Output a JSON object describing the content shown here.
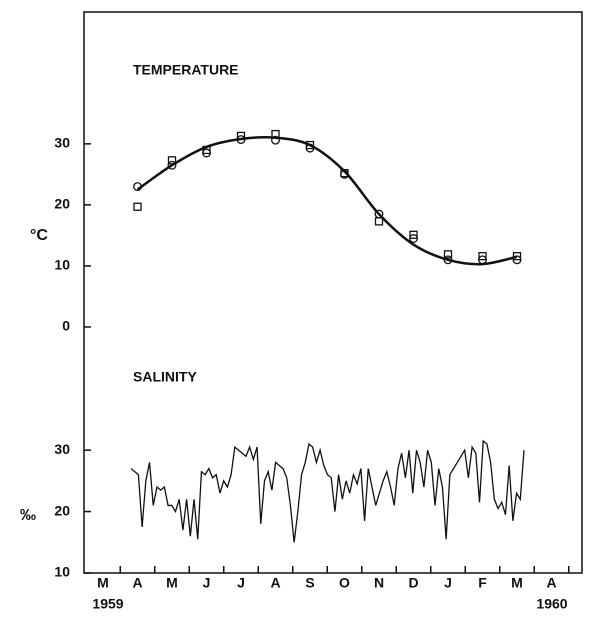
{
  "chart_data": [
    {
      "type": "scatter",
      "title": "TEMPERATURE",
      "y_label": "°C",
      "categories": [
        "M",
        "A",
        "M",
        "J",
        "J",
        "A",
        "S",
        "O",
        "N",
        "D",
        "J",
        "F",
        "M",
        "A"
      ],
      "year_labels": [
        "1959",
        "1960"
      ],
      "ylim": [
        -5,
        51.6
      ],
      "yticks": [
        0,
        10,
        20,
        30
      ],
      "series": [
        {
          "marker": "circle",
          "color": "#111111",
          "values": [
            null,
            23,
            26.5,
            28.5,
            30.7,
            30.6,
            29.3,
            25,
            18.5,
            14.5,
            11,
            11,
            11,
            null
          ]
        },
        {
          "marker": "square",
          "color": "#111111",
          "values": [
            null,
            19.7,
            27.3,
            29,
            31.3,
            31.6,
            29.8,
            25.2,
            17.3,
            15.1,
            11.9,
            11.6,
            11.6,
            null
          ]
        },
        {
          "marker": "line",
          "color": "#111111",
          "values": [
            null,
            22.5,
            26.5,
            29.5,
            30.8,
            31,
            29.8,
            25.5,
            18.5,
            13.5,
            11,
            10.3,
            11.5,
            null
          ]
        }
      ]
    },
    {
      "type": "line",
      "title": "SALINITY",
      "y_label": "‰",
      "color": "#111111",
      "ylim": [
        10,
        38
      ],
      "yticks": [
        10,
        20,
        30
      ],
      "values": [
        27,
        26.5,
        26,
        17.5,
        25,
        28,
        21,
        24,
        23.5,
        24,
        21,
        21,
        20,
        22,
        17,
        22,
        16,
        22,
        15.5,
        26.5,
        26,
        27,
        25.5,
        26,
        23,
        25,
        24,
        26,
        30.5,
        30,
        29.5,
        29,
        30.5,
        28.5,
        30.5,
        18,
        25,
        26.5,
        23.5,
        28,
        27.5,
        27,
        25.5,
        21,
        15,
        20,
        26,
        28,
        31,
        30.5,
        28,
        30,
        27.5,
        26,
        25.5,
        20,
        26,
        22,
        25,
        23,
        26,
        24.5,
        27,
        18.5,
        27,
        24,
        21,
        23,
        25,
        26.5,
        24,
        21,
        27,
        29.5,
        25.5,
        30,
        23,
        30,
        28,
        24,
        30,
        28,
        21,
        27,
        24,
        15.5,
        26,
        27,
        28,
        29,
        30,
        25.5,
        30.5,
        29.5,
        21.5,
        31.5,
        31,
        28,
        22,
        20.5,
        21.5,
        19.5,
        27.5,
        18.5,
        23,
        22,
        30
      ]
    }
  ]
}
